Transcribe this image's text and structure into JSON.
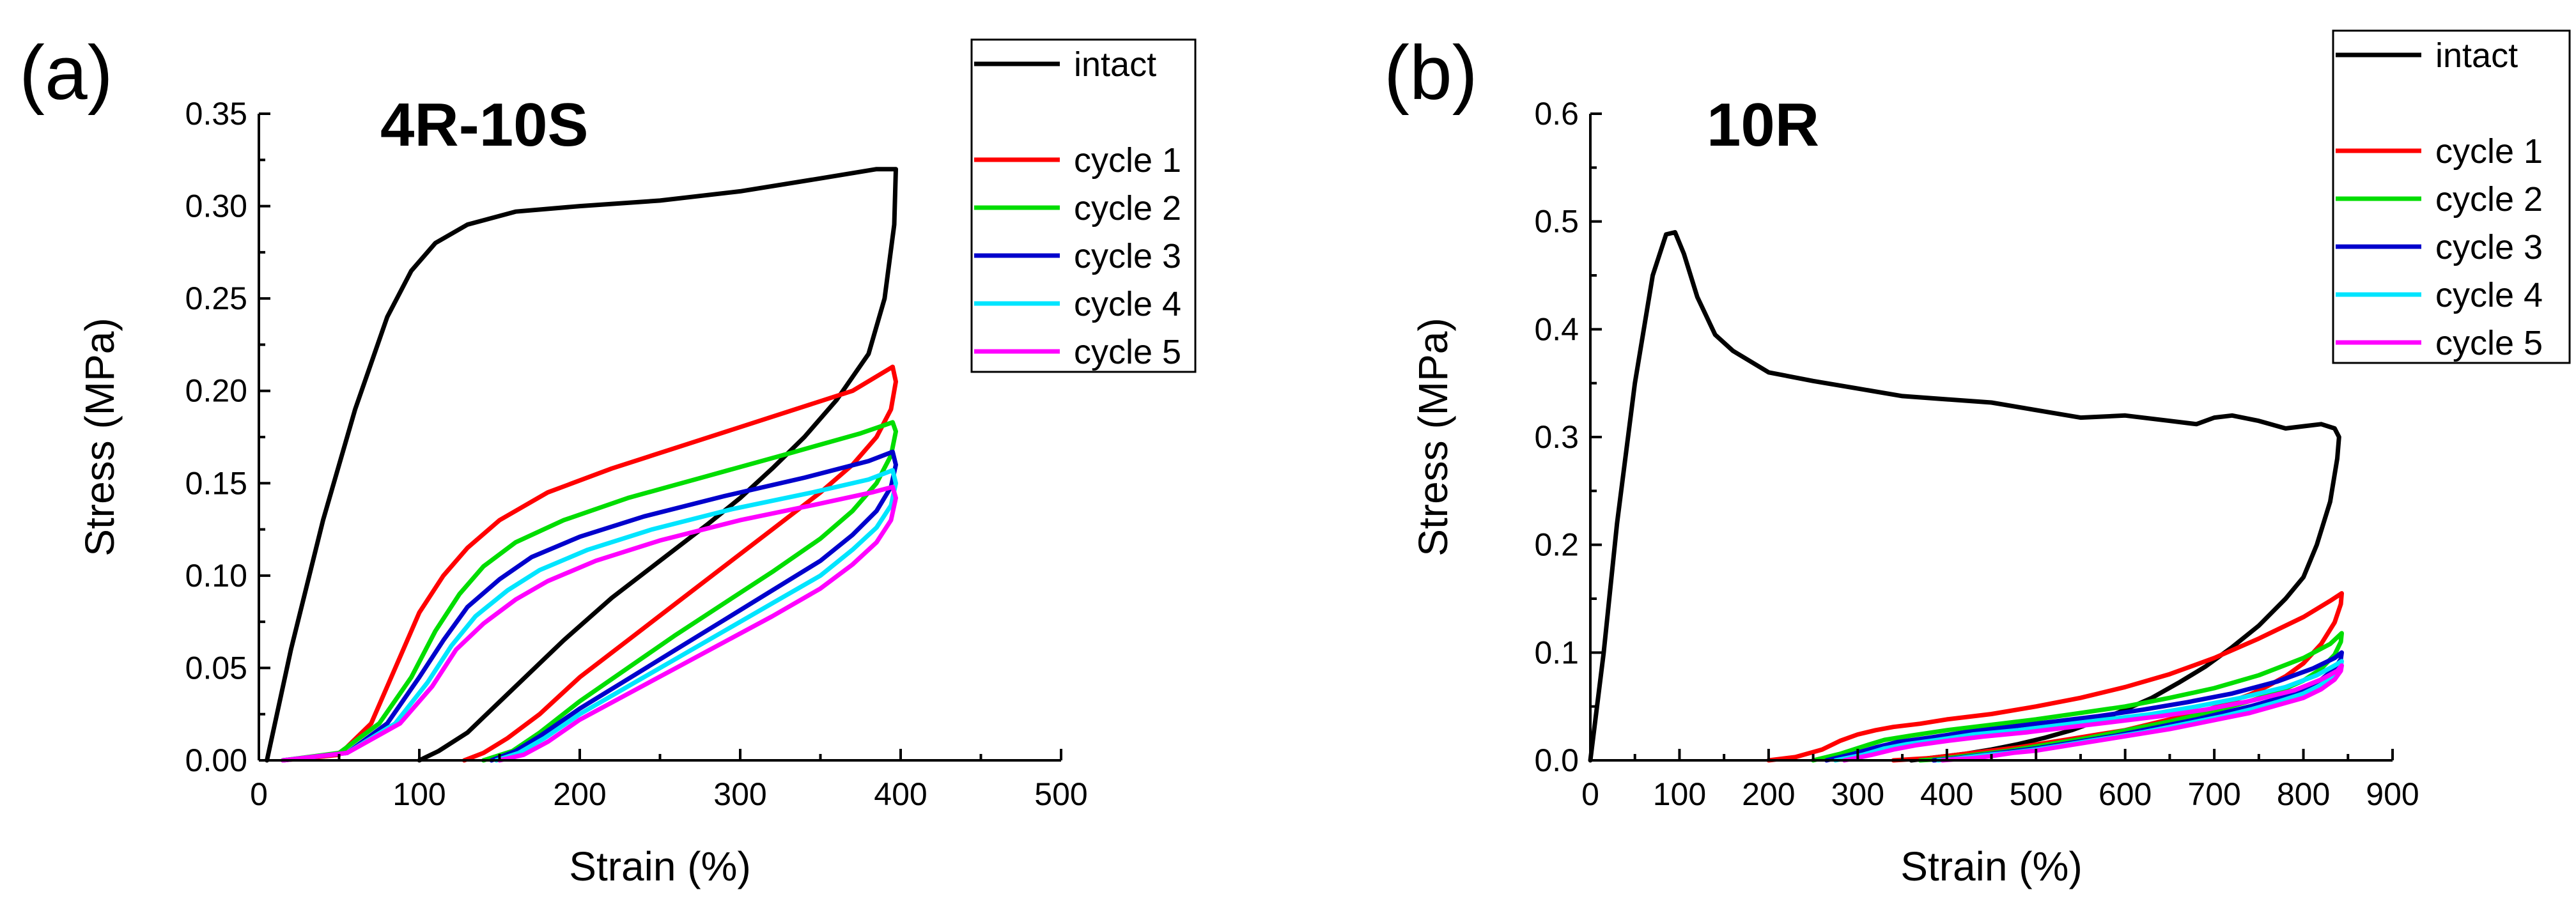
{
  "chart_data": [
    {
      "type": "line",
      "panel_label": "(a)",
      "title": "4R-10S",
      "xlabel": "Strain (%)",
      "ylabel": "Stress (MPa)",
      "xlim": [
        0,
        500
      ],
      "ylim": [
        0,
        0.35
      ],
      "xticks": [
        "0",
        "100",
        "200",
        "300",
        "400",
        "500"
      ],
      "yticks": [
        "0.00",
        "0.05",
        "0.10",
        "0.15",
        "0.20",
        "0.25",
        "0.30",
        "0.35"
      ],
      "grid": false,
      "legend_position": "top-right outside",
      "series": [
        {
          "name": "intact",
          "color": "#000000",
          "x": [
            5,
            20,
            40,
            60,
            80,
            95,
            110,
            130,
            160,
            200,
            250,
            300,
            350,
            385,
            397,
            396,
            390,
            380,
            360,
            340,
            320,
            300,
            280,
            250,
            220,
            190,
            160,
            130,
            112,
            100
          ],
          "y": [
            0,
            0.06,
            0.13,
            0.19,
            0.24,
            0.265,
            0.28,
            0.29,
            0.297,
            0.3,
            0.303,
            0.308,
            0.315,
            0.32,
            0.32,
            0.29,
            0.25,
            0.22,
            0.195,
            0.175,
            0.158,
            0.142,
            0.128,
            0.108,
            0.088,
            0.065,
            0.04,
            0.015,
            0.005,
            0
          ]
        },
        {
          "name": "cycle 1",
          "color": "#ff0000",
          "x": [
            15,
            50,
            70,
            85,
            100,
            115,
            130,
            150,
            180,
            220,
            270,
            320,
            370,
            395,
            397,
            394,
            385,
            370,
            350,
            320,
            290,
            260,
            230,
            200,
            175,
            155,
            140,
            128
          ],
          "y": [
            0,
            0.003,
            0.02,
            0.05,
            0.08,
            0.1,
            0.115,
            0.13,
            0.145,
            0.158,
            0.172,
            0.186,
            0.2,
            0.213,
            0.205,
            0.19,
            0.175,
            0.16,
            0.145,
            0.125,
            0.105,
            0.085,
            0.065,
            0.045,
            0.025,
            0.012,
            0.004,
            0
          ]
        },
        {
          "name": "cycle 2",
          "color": "#00dd00",
          "x": [
            15,
            50,
            75,
            95,
            110,
            125,
            140,
            160,
            190,
            230,
            280,
            330,
            375,
            395,
            397,
            394,
            385,
            370,
            350,
            320,
            290,
            260,
            230,
            200,
            175,
            158,
            140
          ],
          "y": [
            0,
            0.004,
            0.02,
            0.045,
            0.07,
            0.09,
            0.105,
            0.118,
            0.13,
            0.142,
            0.154,
            0.166,
            0.177,
            0.183,
            0.178,
            0.165,
            0.15,
            0.135,
            0.12,
            0.102,
            0.085,
            0.068,
            0.05,
            0.032,
            0.015,
            0.005,
            0
          ]
        },
        {
          "name": "cycle 3",
          "color": "#0000cc",
          "x": [
            15,
            55,
            80,
            100,
            115,
            130,
            150,
            170,
            200,
            240,
            290,
            340,
            380,
            395,
            397,
            394,
            385,
            370,
            350,
            320,
            290,
            260,
            230,
            200,
            175,
            160,
            145
          ],
          "y": [
            0,
            0.004,
            0.02,
            0.045,
            0.065,
            0.083,
            0.098,
            0.11,
            0.121,
            0.132,
            0.143,
            0.153,
            0.162,
            0.167,
            0.16,
            0.148,
            0.135,
            0.122,
            0.108,
            0.092,
            0.076,
            0.06,
            0.044,
            0.028,
            0.013,
            0.005,
            0
          ]
        },
        {
          "name": "cycle 4",
          "color": "#00e5ff",
          "x": [
            15,
            55,
            85,
            105,
            120,
            135,
            155,
            175,
            205,
            245,
            295,
            345,
            380,
            395,
            397,
            394,
            385,
            370,
            350,
            320,
            290,
            260,
            230,
            200,
            178,
            162,
            148
          ],
          "y": [
            0,
            0.004,
            0.02,
            0.042,
            0.062,
            0.078,
            0.092,
            0.103,
            0.114,
            0.125,
            0.136,
            0.145,
            0.152,
            0.157,
            0.15,
            0.138,
            0.126,
            0.114,
            0.1,
            0.085,
            0.07,
            0.055,
            0.04,
            0.025,
            0.012,
            0.004,
            0
          ]
        },
        {
          "name": "cycle 5",
          "color": "#ff00ff",
          "x": [
            15,
            55,
            88,
            108,
            123,
            140,
            160,
            180,
            210,
            250,
            300,
            350,
            382,
            395,
            397,
            394,
            385,
            370,
            350,
            320,
            290,
            260,
            230,
            200,
            180,
            165,
            150
          ],
          "y": [
            0,
            0.004,
            0.02,
            0.04,
            0.06,
            0.074,
            0.087,
            0.097,
            0.108,
            0.119,
            0.13,
            0.139,
            0.145,
            0.148,
            0.142,
            0.13,
            0.118,
            0.106,
            0.093,
            0.078,
            0.064,
            0.05,
            0.036,
            0.022,
            0.01,
            0.003,
            0
          ]
        }
      ]
    },
    {
      "type": "line",
      "panel_label": "(b)",
      "title": "10R",
      "xlabel": "Strain (%)",
      "ylabel": "Stress (MPa)",
      "xlim": [
        0,
        900
      ],
      "ylim": [
        0,
        0.6
      ],
      "xticks": [
        "0",
        "100",
        "200",
        "300",
        "400",
        "500",
        "600",
        "700",
        "800",
        "900"
      ],
      "yticks": [
        "0.0",
        "0.1",
        "0.2",
        "0.3",
        "0.4",
        "0.5",
        "0.6"
      ],
      "grid": false,
      "legend_position": "top-right outside",
      "series": [
        {
          "name": "intact",
          "color": "#000000",
          "x": [
            0,
            15,
            30,
            50,
            70,
            85,
            95,
            105,
            120,
            140,
            160,
            200,
            250,
            300,
            350,
            400,
            450,
            500,
            550,
            600,
            650,
            680,
            700,
            720,
            750,
            780,
            800,
            820,
            835,
            840,
            838,
            830,
            815,
            800,
            780,
            750,
            720,
            690,
            660,
            630,
            600,
            570,
            540,
            510,
            480,
            450,
            420,
            390,
            360
          ],
          "y": [
            0,
            0.1,
            0.22,
            0.35,
            0.45,
            0.488,
            0.49,
            0.47,
            0.43,
            0.395,
            0.38,
            0.36,
            0.352,
            0.345,
            0.338,
            0.335,
            0.332,
            0.325,
            0.318,
            0.32,
            0.315,
            0.312,
            0.318,
            0.32,
            0.315,
            0.308,
            0.31,
            0.312,
            0.308,
            0.3,
            0.28,
            0.24,
            0.2,
            0.17,
            0.15,
            0.125,
            0.105,
            0.087,
            0.072,
            0.058,
            0.047,
            0.037,
            0.028,
            0.021,
            0.015,
            0.01,
            0.006,
            0.003,
            0
          ]
        },
        {
          "name": "cycle 1",
          "color": "#ff0000",
          "x": [
            200,
            230,
            260,
            280,
            300,
            320,
            340,
            370,
            400,
            450,
            500,
            550,
            600,
            650,
            700,
            750,
            800,
            830,
            843,
            842,
            835,
            820,
            800,
            780,
            760,
            740,
            720,
            700,
            680,
            660,
            640,
            620,
            600,
            570,
            540,
            510,
            480,
            450,
            420,
            400,
            380,
            360,
            340
          ],
          "y": [
            0,
            0.003,
            0.01,
            0.018,
            0.024,
            0.028,
            0.031,
            0.034,
            0.038,
            0.043,
            0.05,
            0.058,
            0.068,
            0.08,
            0.095,
            0.113,
            0.133,
            0.148,
            0.155,
            0.145,
            0.128,
            0.108,
            0.09,
            0.078,
            0.069,
            0.061,
            0.055,
            0.049,
            0.044,
            0.04,
            0.036,
            0.032,
            0.028,
            0.024,
            0.02,
            0.016,
            0.012,
            0.009,
            0.006,
            0.004,
            0.002,
            0.001,
            0
          ]
        },
        {
          "name": "cycle 2",
          "color": "#00dd00",
          "x": [
            250,
            280,
            310,
            330,
            360,
            400,
            450,
            500,
            550,
            600,
            650,
            700,
            750,
            800,
            830,
            843,
            842,
            835,
            820,
            800,
            770,
            740,
            710,
            680,
            650,
            620,
            590,
            560,
            530,
            500,
            470,
            440,
            410,
            390,
            370
          ],
          "y": [
            0,
            0.006,
            0.014,
            0.019,
            0.023,
            0.028,
            0.033,
            0.038,
            0.044,
            0.05,
            0.058,
            0.067,
            0.079,
            0.095,
            0.108,
            0.118,
            0.11,
            0.098,
            0.085,
            0.074,
            0.063,
            0.055,
            0.048,
            0.042,
            0.036,
            0.031,
            0.026,
            0.021,
            0.017,
            0.013,
            0.009,
            0.006,
            0.003,
            0.001,
            0
          ]
        },
        {
          "name": "cycle 3",
          "color": "#0000cc",
          "x": [
            265,
            295,
            320,
            345,
            380,
            420,
            470,
            520,
            570,
            620,
            670,
            720,
            770,
            810,
            835,
            843,
            842,
            835,
            820,
            800,
            770,
            740,
            710,
            680,
            650,
            620,
            590,
            560,
            530,
            500,
            470,
            440,
            420,
            400,
            385
          ],
          "y": [
            0,
            0.006,
            0.012,
            0.017,
            0.021,
            0.026,
            0.031,
            0.036,
            0.041,
            0.047,
            0.054,
            0.062,
            0.073,
            0.085,
            0.095,
            0.1,
            0.094,
            0.085,
            0.075,
            0.066,
            0.057,
            0.05,
            0.044,
            0.038,
            0.033,
            0.028,
            0.023,
            0.019,
            0.015,
            0.011,
            0.008,
            0.005,
            0.003,
            0.001,
            0
          ]
        },
        {
          "name": "cycle 4",
          "color": "#00e5ff",
          "x": [
            275,
            305,
            330,
            355,
            390,
            430,
            480,
            530,
            580,
            630,
            680,
            730,
            780,
            815,
            835,
            843,
            842,
            835,
            820,
            800,
            770,
            740,
            710,
            680,
            650,
            620,
            590,
            560,
            530,
            500,
            470,
            445,
            425,
            405,
            390
          ],
          "y": [
            0,
            0.005,
            0.011,
            0.015,
            0.019,
            0.024,
            0.028,
            0.033,
            0.038,
            0.043,
            0.05,
            0.058,
            0.068,
            0.079,
            0.088,
            0.092,
            0.087,
            0.079,
            0.07,
            0.062,
            0.054,
            0.047,
            0.041,
            0.036,
            0.031,
            0.026,
            0.022,
            0.018,
            0.014,
            0.01,
            0.007,
            0.005,
            0.003,
            0.001,
            0
          ]
        },
        {
          "name": "cycle 5",
          "color": "#ff00ff",
          "x": [
            285,
            315,
            340,
            365,
            400,
            440,
            490,
            540,
            590,
            640,
            690,
            740,
            790,
            820,
            838,
            843,
            842,
            835,
            820,
            800,
            770,
            740,
            710,
            680,
            650,
            620,
            590,
            560,
            530,
            500,
            475,
            450,
            430,
            410,
            395
          ],
          "y": [
            0,
            0.005,
            0.01,
            0.014,
            0.018,
            0.022,
            0.026,
            0.031,
            0.036,
            0.041,
            0.047,
            0.055,
            0.065,
            0.075,
            0.083,
            0.088,
            0.083,
            0.075,
            0.066,
            0.058,
            0.051,
            0.044,
            0.039,
            0.034,
            0.029,
            0.025,
            0.021,
            0.017,
            0.013,
            0.009,
            0.007,
            0.004,
            0.002,
            0.001,
            0
          ]
        }
      ]
    }
  ]
}
